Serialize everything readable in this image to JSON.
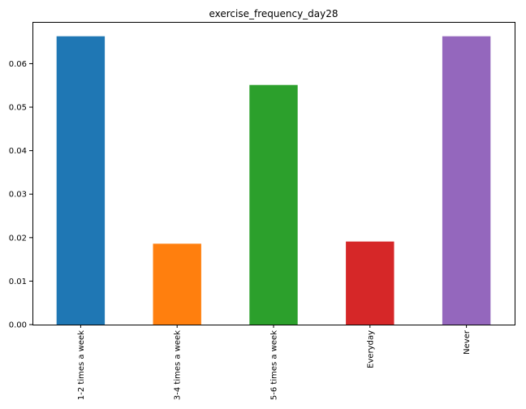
{
  "chart_data": {
    "type": "bar",
    "title": "exercise_frequency_day28",
    "xlabel": "",
    "ylabel": "",
    "categories": [
      "1-2 times a week",
      "3-4 times a week",
      "5-6 times a week",
      "Everyday",
      "Never"
    ],
    "values": [
      0.0663,
      0.0186,
      0.0551,
      0.0191,
      0.0663
    ],
    "colors": [
      "#1f77b4",
      "#ff7f0e",
      "#2ca02c",
      "#d62728",
      "#9467bd"
    ],
    "ylim": [
      0,
      0.0696
    ],
    "yticks": [
      0.0,
      0.01,
      0.02,
      0.03,
      0.04,
      0.05,
      0.06
    ],
    "ytick_labels": [
      "0.00",
      "0.01",
      "0.02",
      "0.03",
      "0.04",
      "0.05",
      "0.06"
    ],
    "grid": false,
    "legend": "none"
  }
}
